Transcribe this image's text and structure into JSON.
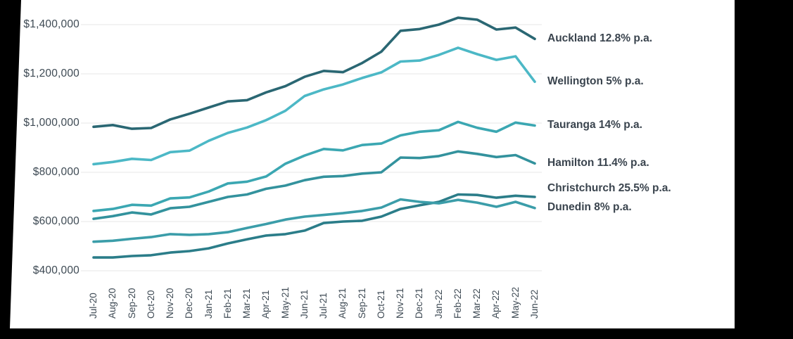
{
  "chart_data": {
    "type": "line",
    "title": "",
    "subtitle": "",
    "legend_position": "right",
    "grid": "horizontal",
    "x_labels": [
      "Jul-20",
      "Aug-20",
      "Sep-20",
      "Oct-20",
      "Nov-20",
      "Dec-20",
      "Jan-21",
      "Feb-21",
      "Mar-21",
      "Apr-21",
      "May-21",
      "Jun-21",
      "Jul-21",
      "Aug-21",
      "Sep-21",
      "Oct-21",
      "Nov-21",
      "Dec-21",
      "Jan-22",
      "Feb-22",
      "Mar-22",
      "Apr-22",
      "May-22",
      "Jun-22"
    ],
    "y_axis": {
      "min": 400000,
      "max": 1400000,
      "ticks": [
        {
          "value": 1400000,
          "label": "$1,400,000"
        },
        {
          "value": 1200000,
          "label": "$1,200,000"
        },
        {
          "value": 1000000,
          "label": "$1,000,000"
        },
        {
          "value": 800000,
          "label": "$800,000"
        },
        {
          "value": 600000,
          "label": "$600,000"
        },
        {
          "value": 400000,
          "label": "$400,000"
        }
      ]
    },
    "series": [
      {
        "name": "Auckland",
        "legend_label": "Auckland 12.8% p.a.",
        "color": "#2a6773",
        "values": [
          985000,
          992000,
          977000,
          980000,
          1015000,
          1038000,
          1063000,
          1088000,
          1093000,
          1125000,
          1150000,
          1188000,
          1212000,
          1207000,
          1244000,
          1290000,
          1375000,
          1382000,
          1400000,
          1428000,
          1420000,
          1380000,
          1388000,
          1342000
        ]
      },
      {
        "name": "Wellington",
        "legend_label": "Wellington 5% p.a.",
        "color": "#4cb8c6",
        "values": [
          833000,
          842000,
          855000,
          850000,
          882000,
          888000,
          928000,
          960000,
          982000,
          1012000,
          1050000,
          1110000,
          1137000,
          1157000,
          1183000,
          1206000,
          1250000,
          1254000,
          1277000,
          1306000,
          1280000,
          1257000,
          1271000,
          1168000
        ]
      },
      {
        "name": "Tauranga",
        "legend_label": "Tauranga 14% p.a.",
        "color": "#3ba7b2",
        "values": [
          643000,
          651000,
          668000,
          665000,
          694000,
          698000,
          722000,
          755000,
          762000,
          783000,
          835000,
          868000,
          895000,
          889000,
          911000,
          917000,
          950000,
          965000,
          971000,
          1005000,
          981000,
          965000,
          1002000,
          990000
        ]
      },
      {
        "name": "Hamilton",
        "legend_label": "Hamilton 11.4% p.a.",
        "color": "#33929d",
        "values": [
          611000,
          622000,
          637000,
          629000,
          654000,
          660000,
          680000,
          700000,
          710000,
          733000,
          746000,
          768000,
          782000,
          785000,
          795000,
          800000,
          860000,
          858000,
          866000,
          885000,
          875000,
          862000,
          870000,
          836000
        ]
      },
      {
        "name": "Christchurch",
        "legend_label": "Christchurch 25.5% p.a.",
        "color": "#2b7d89",
        "values": [
          454000,
          454000,
          460000,
          463000,
          474000,
          480000,
          491000,
          511000,
          528000,
          543000,
          549000,
          563000,
          594000,
          600000,
          603000,
          620000,
          651000,
          666000,
          680000,
          710000,
          708000,
          697000,
          705000,
          700000
        ]
      },
      {
        "name": "Dunedin",
        "legend_label": "Dunedin 8% p.a.",
        "color": "#3b9da9",
        "values": [
          518000,
          522000,
          530000,
          537000,
          549000,
          546000,
          549000,
          557000,
          574000,
          590000,
          608000,
          620000,
          627000,
          634000,
          643000,
          657000,
          690000,
          680000,
          674000,
          688000,
          677000,
          660000,
          680000,
          655000
        ]
      }
    ]
  },
  "colors": {
    "page_background": "#000000",
    "chart_background": "#ffffff",
    "gridline": "#ececec",
    "axis_text": "#3e4a54",
    "legend_text": "#3a444e"
  }
}
